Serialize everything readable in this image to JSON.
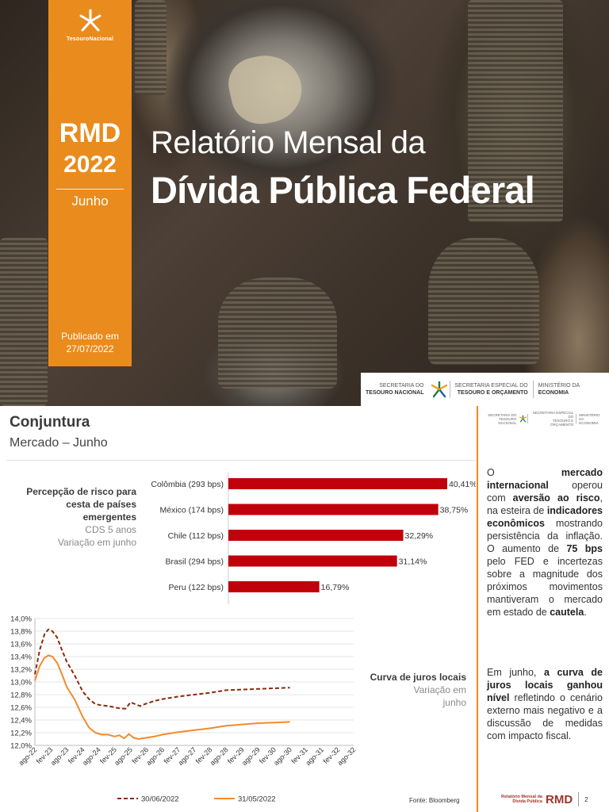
{
  "cover": {
    "brand": "TesouroNacional",
    "rmd": "RMD",
    "year": "2022",
    "month": "Junho",
    "published_label": "Publicado em",
    "published_date": "27/07/2022",
    "title_line1": "Relatório Mensal da",
    "title_line2": "Dívida Pública Federal",
    "gov": {
      "s1a": "SECRETARIA DO",
      "s1b": "TESOURO NACIONAL",
      "s2a": "SECRETARIA ESPECIAL DO",
      "s2b": "TESOURO E ORÇAMENTO",
      "s3a": "MINISTÉRIO DA",
      "s3b": "ECONOMIA"
    },
    "colors": {
      "accent": "#ea8b1d"
    }
  },
  "page": {
    "section": "Conjuntura",
    "subsection": "Mercado – Junho",
    "mini_gov": {
      "s1a": "SECRETARIA DO",
      "s1b": "TESOURO NACIONAL",
      "s2a": "SECRETARIA ESPECIAL DO",
      "s2b": "TESOURO E ORÇAMENTO",
      "s3a": "MINISTÉRIO DA",
      "s3b": "ECONOMIA"
    },
    "risk_caption": {
      "line1": "Percepção de risco para",
      "line2": "cesta de países",
      "line3": "emergentes",
      "line4": "CDS 5 anos",
      "line5": "Variação em junho"
    },
    "yield_caption": {
      "line1": "Curva de juros locais",
      "line2": "Variação em",
      "line3": "junho"
    },
    "source": "Fonte: Bloomberg",
    "footer": {
      "small1": "Relatório Mensal da",
      "small2": "Dívida Pública",
      "rmd": "RMD",
      "page": "2"
    }
  },
  "chart_data": [
    {
      "type": "bar",
      "orientation": "horizontal",
      "categories": [
        "Colômbia (293 bps)",
        "México (174 bps)",
        "Chile (112 bps)",
        "Brasil (294 bps)",
        "Peru (122 bps)"
      ],
      "values": [
        40.41,
        38.75,
        32.29,
        31.14,
        16.79
      ],
      "labels": [
        "40,41%",
        "38,75%",
        "32,29%",
        "31,14%",
        "16,79%"
      ],
      "color": "#c0000b"
    },
    {
      "type": "line",
      "x": [
        "ago-22",
        "fev-23",
        "ago-23",
        "fev-24",
        "ago-24",
        "fev-25",
        "ago-25",
        "fev-26",
        "ago-26",
        "fev-27",
        "ago-27",
        "fev-28",
        "ago-28",
        "fev-29",
        "ago-29",
        "fev-30",
        "ago-30",
        "fev-31",
        "ago-31",
        "fev-32",
        "ago-32"
      ],
      "yticks": [
        "12,0%",
        "12,2%",
        "12,4%",
        "12,6%",
        "12,8%",
        "13,0%",
        "13,2%",
        "13,4%",
        "13,6%",
        "13,8%",
        "14,0%"
      ],
      "ylim": [
        12.0,
        14.0
      ],
      "series": [
        {
          "name": "30/06/2022",
          "style": "dashed",
          "color": "#8b2a10",
          "points": [
            [
              0,
              13.12
            ],
            [
              0.3,
              13.5
            ],
            [
              0.6,
              13.75
            ],
            [
              0.85,
              13.83
            ],
            [
              1.1,
              13.8
            ],
            [
              1.4,
              13.7
            ],
            [
              1.7,
              13.5
            ],
            [
              2.0,
              13.32
            ],
            [
              2.5,
              13.1
            ],
            [
              3.0,
              12.85
            ],
            [
              3.4,
              12.73
            ],
            [
              3.8,
              12.65
            ],
            [
              4.2,
              12.63
            ],
            [
              4.6,
              12.62
            ],
            [
              5.0,
              12.6
            ],
            [
              5.4,
              12.58
            ],
            [
              5.7,
              12.58
            ],
            [
              6.0,
              12.68
            ],
            [
              6.3,
              12.65
            ],
            [
              6.6,
              12.62
            ],
            [
              7.0,
              12.66
            ],
            [
              7.5,
              12.7
            ],
            [
              8.0,
              12.73
            ],
            [
              9.0,
              12.77
            ],
            [
              10.0,
              12.8
            ],
            [
              11.0,
              12.83
            ],
            [
              12.0,
              12.87
            ],
            [
              13.0,
              12.88
            ],
            [
              14.0,
              12.89
            ],
            [
              15.0,
              12.9
            ],
            [
              16.0,
              12.91
            ]
          ]
        },
        {
          "name": "31/05/2022",
          "style": "solid",
          "color": "#f28a2e",
          "points": [
            [
              0,
              13.02
            ],
            [
              0.3,
              13.25
            ],
            [
              0.6,
              13.38
            ],
            [
              0.85,
              13.42
            ],
            [
              1.1,
              13.4
            ],
            [
              1.4,
              13.3
            ],
            [
              1.7,
              13.12
            ],
            [
              2.0,
              12.92
            ],
            [
              2.5,
              12.72
            ],
            [
              3.0,
              12.45
            ],
            [
              3.4,
              12.28
            ],
            [
              3.8,
              12.2
            ],
            [
              4.2,
              12.17
            ],
            [
              4.6,
              12.17
            ],
            [
              5.0,
              12.14
            ],
            [
              5.3,
              12.16
            ],
            [
              5.6,
              12.11
            ],
            [
              5.9,
              12.18
            ],
            [
              6.2,
              12.12
            ],
            [
              6.5,
              12.1
            ],
            [
              7.0,
              12.12
            ],
            [
              7.5,
              12.14
            ],
            [
              8.0,
              12.17
            ],
            [
              9.0,
              12.21
            ],
            [
              10.0,
              12.24
            ],
            [
              11.0,
              12.27
            ],
            [
              12.0,
              12.31
            ],
            [
              13.0,
              12.33
            ],
            [
              14.0,
              12.35
            ],
            [
              15.0,
              12.36
            ],
            [
              16.0,
              12.37
            ]
          ]
        }
      ]
    }
  ],
  "side_text": {
    "p1_a": "O ",
    "p1_b": "mercado internacional",
    "p1_c": " operou com ",
    "p1_d": "aversão ao risco",
    "p1_e": ", na esteira de ",
    "p1_f": "indicadores econômicos",
    "p1_g": " mostrando persistência da inflação. O aumento de ",
    "p1_h": "75 bps",
    "p1_i": " pelo FED e incertezas sobre a magnitude dos próximos movimentos mantiveram o mercado em estado de ",
    "p1_j": "cautela",
    "p1_k": ".",
    "p2_a": "Em junho, ",
    "p2_b": "a curva de juros locais ganhou nível",
    "p2_c": " refletindo o cenário externo mais negativo e a discussão de medidas com impacto fiscal."
  }
}
